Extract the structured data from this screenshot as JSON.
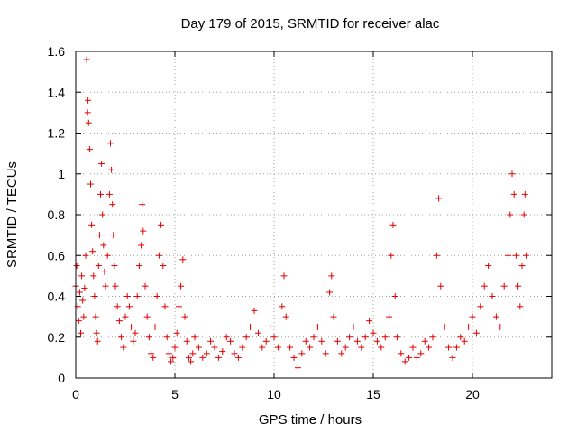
{
  "chart_data": {
    "type": "scatter",
    "title": "Day 179 of 2015, SRMTID for receiver alac",
    "xlabel": "GPS time / hours",
    "ylabel": "SRMTID / TECUs",
    "xlim": [
      0,
      24
    ],
    "ylim": [
      0,
      1.6
    ],
    "x_ticks": [
      0,
      5,
      10,
      15,
      20
    ],
    "x_tick_labels": [
      "0",
      "5",
      "10",
      "15",
      "20"
    ],
    "y_ticks": [
      0,
      0.2,
      0.4,
      0.6,
      0.8,
      1.0,
      1.2,
      1.4,
      1.6
    ],
    "y_tick_labels": [
      "0",
      "0.2",
      "0.4",
      "0.6",
      "0.8",
      "1",
      "1.2",
      "1.4",
      "1.6"
    ],
    "grid": true,
    "marker": "+",
    "color": "#e00000",
    "series": [
      {
        "name": "SRMTID",
        "points": [
          [
            0.0,
            0.45
          ],
          [
            0.05,
            0.55
          ],
          [
            0.1,
            0.35
          ],
          [
            0.15,
            0.28
          ],
          [
            0.2,
            0.42
          ],
          [
            0.25,
            0.22
          ],
          [
            0.3,
            0.5
          ],
          [
            0.35,
            0.38
          ],
          [
            0.4,
            0.3
          ],
          [
            0.45,
            0.44
          ],
          [
            0.5,
            0.6
          ],
          [
            0.55,
            1.56
          ],
          [
            0.6,
            1.3
          ],
          [
            0.62,
            1.36
          ],
          [
            0.65,
            1.25
          ],
          [
            0.7,
            1.12
          ],
          [
            0.75,
            0.95
          ],
          [
            0.8,
            0.75
          ],
          [
            0.85,
            0.62
          ],
          [
            0.9,
            0.5
          ],
          [
            0.95,
            0.4
          ],
          [
            1.0,
            0.3
          ],
          [
            1.05,
            0.22
          ],
          [
            1.1,
            0.18
          ],
          [
            1.15,
            0.55
          ],
          [
            1.2,
            0.7
          ],
          [
            1.25,
            0.9
          ],
          [
            1.3,
            1.05
          ],
          [
            1.35,
            0.8
          ],
          [
            1.4,
            0.65
          ],
          [
            1.45,
            0.52
          ],
          [
            1.5,
            0.45
          ],
          [
            1.6,
            0.6
          ],
          [
            1.7,
            0.9
          ],
          [
            1.75,
            1.15
          ],
          [
            1.8,
            1.02
          ],
          [
            1.85,
            0.85
          ],
          [
            1.9,
            0.7
          ],
          [
            1.95,
            0.55
          ],
          [
            2.0,
            0.45
          ],
          [
            2.1,
            0.35
          ],
          [
            2.2,
            0.28
          ],
          [
            2.3,
            0.2
          ],
          [
            2.4,
            0.15
          ],
          [
            2.5,
            0.3
          ],
          [
            2.6,
            0.4
          ],
          [
            2.7,
            0.35
          ],
          [
            2.8,
            0.25
          ],
          [
            2.9,
            0.18
          ],
          [
            3.0,
            0.22
          ],
          [
            3.1,
            0.4
          ],
          [
            3.2,
            0.55
          ],
          [
            3.3,
            0.65
          ],
          [
            3.35,
            0.85
          ],
          [
            3.4,
            0.72
          ],
          [
            3.5,
            0.45
          ],
          [
            3.6,
            0.3
          ],
          [
            3.7,
            0.2
          ],
          [
            3.8,
            0.12
          ],
          [
            3.9,
            0.1
          ],
          [
            4.0,
            0.25
          ],
          [
            4.1,
            0.4
          ],
          [
            4.2,
            0.6
          ],
          [
            4.3,
            0.75
          ],
          [
            4.4,
            0.55
          ],
          [
            4.5,
            0.35
          ],
          [
            4.6,
            0.2
          ],
          [
            4.7,
            0.12
          ],
          [
            4.8,
            0.08
          ],
          [
            4.9,
            0.1
          ],
          [
            5.0,
            0.15
          ],
          [
            5.1,
            0.22
          ],
          [
            5.2,
            0.35
          ],
          [
            5.3,
            0.45
          ],
          [
            5.4,
            0.58
          ],
          [
            5.5,
            0.3
          ],
          [
            5.6,
            0.18
          ],
          [
            5.7,
            0.1
          ],
          [
            5.8,
            0.08
          ],
          [
            5.9,
            0.12
          ],
          [
            6.0,
            0.2
          ],
          [
            6.2,
            0.15
          ],
          [
            6.4,
            0.1
          ],
          [
            6.6,
            0.12
          ],
          [
            6.8,
            0.18
          ],
          [
            7.0,
            0.15
          ],
          [
            7.2,
            0.1
          ],
          [
            7.4,
            0.13
          ],
          [
            7.6,
            0.2
          ],
          [
            7.8,
            0.18
          ],
          [
            8.0,
            0.12
          ],
          [
            8.2,
            0.1
          ],
          [
            8.4,
            0.15
          ],
          [
            8.6,
            0.2
          ],
          [
            8.8,
            0.25
          ],
          [
            9.0,
            0.33
          ],
          [
            9.2,
            0.22
          ],
          [
            9.4,
            0.15
          ],
          [
            9.6,
            0.18
          ],
          [
            9.8,
            0.25
          ],
          [
            10.0,
            0.2
          ],
          [
            10.2,
            0.15
          ],
          [
            10.4,
            0.35
          ],
          [
            10.5,
            0.5
          ],
          [
            10.6,
            0.3
          ],
          [
            10.8,
            0.15
          ],
          [
            11.0,
            0.1
          ],
          [
            11.2,
            0.05
          ],
          [
            11.4,
            0.12
          ],
          [
            11.6,
            0.18
          ],
          [
            11.8,
            0.15
          ],
          [
            12.0,
            0.2
          ],
          [
            12.2,
            0.25
          ],
          [
            12.4,
            0.18
          ],
          [
            12.6,
            0.12
          ],
          [
            12.8,
            0.42
          ],
          [
            12.9,
            0.5
          ],
          [
            13.0,
            0.3
          ],
          [
            13.2,
            0.18
          ],
          [
            13.4,
            0.12
          ],
          [
            13.6,
            0.15
          ],
          [
            13.8,
            0.2
          ],
          [
            14.0,
            0.25
          ],
          [
            14.2,
            0.18
          ],
          [
            14.4,
            0.15
          ],
          [
            14.6,
            0.2
          ],
          [
            14.8,
            0.28
          ],
          [
            15.0,
            0.22
          ],
          [
            15.2,
            0.18
          ],
          [
            15.4,
            0.15
          ],
          [
            15.6,
            0.2
          ],
          [
            15.8,
            0.3
          ],
          [
            15.9,
            0.6
          ],
          [
            16.0,
            0.75
          ],
          [
            16.1,
            0.4
          ],
          [
            16.2,
            0.2
          ],
          [
            16.4,
            0.12
          ],
          [
            16.6,
            0.08
          ],
          [
            16.8,
            0.1
          ],
          [
            17.0,
            0.15
          ],
          [
            17.2,
            0.1
          ],
          [
            17.4,
            0.12
          ],
          [
            17.6,
            0.18
          ],
          [
            17.8,
            0.15
          ],
          [
            18.0,
            0.2
          ],
          [
            18.2,
            0.6
          ],
          [
            18.3,
            0.88
          ],
          [
            18.4,
            0.45
          ],
          [
            18.6,
            0.25
          ],
          [
            18.8,
            0.15
          ],
          [
            19.0,
            0.1
          ],
          [
            19.2,
            0.15
          ],
          [
            19.4,
            0.2
          ],
          [
            19.6,
            0.18
          ],
          [
            19.8,
            0.25
          ],
          [
            20.0,
            0.3
          ],
          [
            20.2,
            0.22
          ],
          [
            20.4,
            0.35
          ],
          [
            20.6,
            0.45
          ],
          [
            20.8,
            0.55
          ],
          [
            21.0,
            0.4
          ],
          [
            21.2,
            0.3
          ],
          [
            21.4,
            0.25
          ],
          [
            21.6,
            0.45
          ],
          [
            21.8,
            0.6
          ],
          [
            21.9,
            0.8
          ],
          [
            22.0,
            1.0
          ],
          [
            22.1,
            0.9
          ],
          [
            22.2,
            0.6
          ],
          [
            22.3,
            0.45
          ],
          [
            22.4,
            0.35
          ],
          [
            22.5,
            0.55
          ],
          [
            22.6,
            0.8
          ],
          [
            22.65,
            0.9
          ],
          [
            22.7,
            0.6
          ]
        ]
      }
    ]
  }
}
